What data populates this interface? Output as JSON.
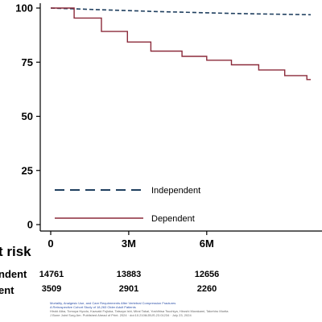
{
  "chart_data": {
    "type": "line",
    "title": "",
    "xlabel": "",
    "ylabel": "",
    "ylim": [
      0,
      100
    ],
    "yticks": [
      0,
      25,
      50,
      75,
      100
    ],
    "xticks": [
      {
        "value": 0,
        "label": "0"
      },
      {
        "value": 3,
        "label": "3M"
      },
      {
        "value": 6,
        "label": "6M"
      }
    ],
    "xlim": [
      0,
      10
    ],
    "grid": false,
    "legend": "bottom-left",
    "series": [
      {
        "name": "Independent",
        "color": "#1f3f5f",
        "style": "dashed",
        "points": [
          [
            0,
            100
          ],
          [
            1.0,
            99.6
          ],
          [
            2.0,
            99.2
          ],
          [
            3.0,
            98.8
          ],
          [
            4.0,
            98.4
          ],
          [
            5.0,
            98.1
          ],
          [
            6.0,
            97.8
          ],
          [
            7.0,
            97.5
          ],
          [
            8.0,
            97.3
          ],
          [
            9.0,
            97.1
          ],
          [
            10.0,
            96.9
          ]
        ]
      },
      {
        "name": "Dependent",
        "color": "#8b2a3a",
        "style": "solid",
        "points": [
          [
            0,
            100
          ],
          [
            0.9,
            100
          ],
          [
            0.9,
            95.4
          ],
          [
            1.95,
            95.4
          ],
          [
            1.95,
            89.2
          ],
          [
            2.95,
            89.2
          ],
          [
            2.95,
            84.3
          ],
          [
            3.85,
            84.3
          ],
          [
            3.85,
            80.1
          ],
          [
            5.05,
            80.1
          ],
          [
            5.05,
            77.7
          ],
          [
            6.0,
            77.7
          ],
          [
            6.0,
            75.9
          ],
          [
            6.95,
            75.9
          ],
          [
            6.95,
            73.8
          ],
          [
            8.0,
            73.8
          ],
          [
            8.0,
            71.4
          ],
          [
            9.0,
            71.4
          ],
          [
            9.0,
            68.8
          ],
          [
            9.85,
            68.8
          ],
          [
            9.85,
            67.0
          ],
          [
            10.0,
            67.0
          ]
        ]
      }
    ],
    "risk_table": {
      "title": "t risk",
      "rows": [
        {
          "group": "ndent",
          "values": [
            "14761",
            "13883",
            "12656"
          ]
        },
        {
          "group": "ent",
          "values": [
            "3509",
            "2901",
            "2260"
          ]
        }
      ]
    }
  },
  "caption": {
    "title": "Mortality, Analgesic Use, and Care Requirements After Vertebral Compression Fractures",
    "subtitle": "A Retrospective Cohort Study of 18,263 Older Adult Patients",
    "authors": "Hiroki Aiba, Tomoya Hyodo, Kazuaki Fujioka, Tatsuya Ishi, Mirai Takai, Yoshihisa Tsuchiya, Hiroshi Murakami, Takehiro Morita",
    "citation": "J Bone Joint Surg Am. Published Ahead of Print. 2024 · doi:10.2106/JBJS.23.01234 · July 23, 2024"
  }
}
